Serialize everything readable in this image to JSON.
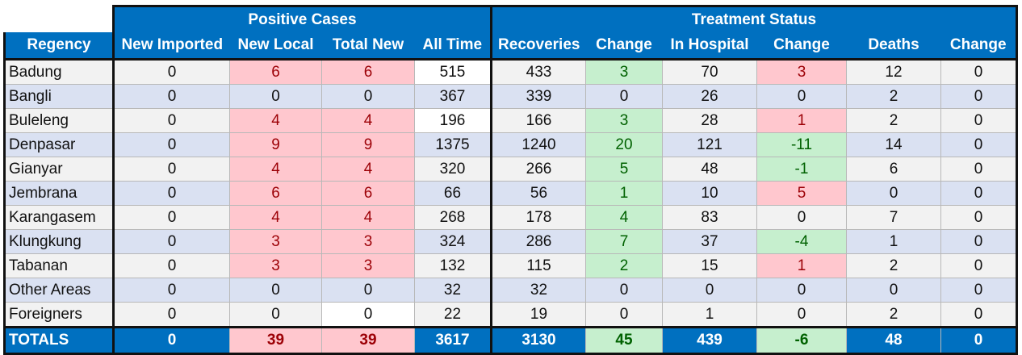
{
  "groups": {
    "positive": "Positive Cases",
    "treatment": "Treatment Status"
  },
  "columns": [
    "Regency",
    "New Imported",
    "New Local",
    "Total New",
    "All Time",
    "Recoveries",
    "Change",
    "In Hospital",
    "Change",
    "Deaths",
    "Change"
  ],
  "rows": [
    [
      "Badung",
      "0",
      "6",
      "6",
      "515",
      "433",
      "3",
      "70",
      "3",
      "12",
      "0"
    ],
    [
      "Bangli",
      "0",
      "0",
      "0",
      "367",
      "339",
      "0",
      "26",
      "0",
      "2",
      "0"
    ],
    [
      "Buleleng",
      "0",
      "4",
      "4",
      "196",
      "166",
      "3",
      "28",
      "1",
      "2",
      "0"
    ],
    [
      "Denpasar",
      "0",
      "9",
      "9",
      "1375",
      "1240",
      "20",
      "121",
      "-11",
      "14",
      "0"
    ],
    [
      "Gianyar",
      "0",
      "4",
      "4",
      "320",
      "266",
      "5",
      "48",
      "-1",
      "6",
      "0"
    ],
    [
      "Jembrana",
      "0",
      "6",
      "6",
      "66",
      "56",
      "1",
      "10",
      "5",
      "0",
      "0"
    ],
    [
      "Karangasem",
      "0",
      "4",
      "4",
      "268",
      "178",
      "4",
      "83",
      "0",
      "7",
      "0"
    ],
    [
      "Klungkung",
      "0",
      "3",
      "3",
      "324",
      "286",
      "7",
      "37",
      "-4",
      "1",
      "0"
    ],
    [
      "Tabanan",
      "0",
      "3",
      "3",
      "132",
      "115",
      "2",
      "15",
      "1",
      "2",
      "0"
    ],
    [
      "Other Areas",
      "0",
      "0",
      "0",
      "32",
      "32",
      "0",
      "0",
      "0",
      "0",
      "0"
    ],
    [
      "Foreigners",
      "0",
      "0",
      "0",
      "22",
      "19",
      "0",
      "1",
      "0",
      "2",
      "0"
    ]
  ],
  "totals": [
    "TOTALS",
    "0",
    "39",
    "39",
    "3617",
    "3130",
    "45",
    "439",
    "-6",
    "48",
    "0"
  ],
  "colors": {
    "header": "#0070c0",
    "pink": "#ffc7ce",
    "green": "#c6efce",
    "band": "#dae1f2"
  }
}
